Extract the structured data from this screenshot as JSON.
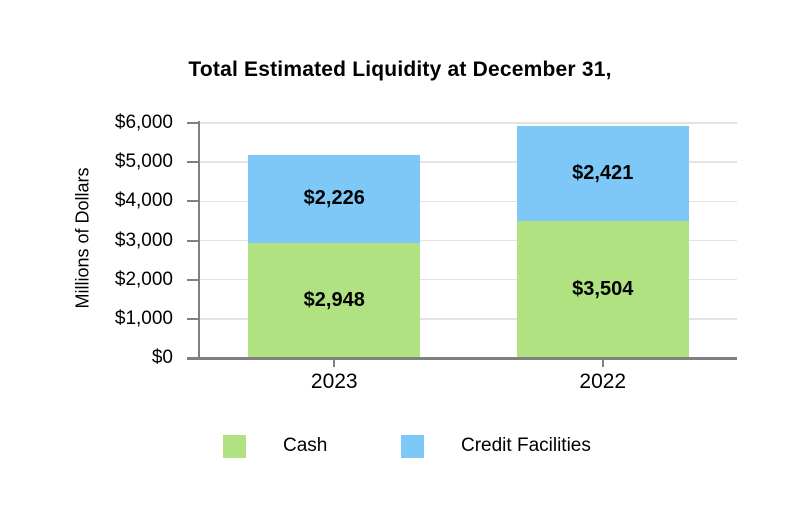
{
  "chart_data": {
    "type": "bar",
    "stacked": true,
    "title": "Total Estimated Liquidity at December 31,",
    "ylabel": "Millions of Dollars",
    "categories": [
      "2023",
      "2022"
    ],
    "series": [
      {
        "name": "Cash",
        "color": "#b1e281",
        "values": [
          2948,
          3504
        ],
        "labels": [
          "$2,948",
          "$3,504"
        ]
      },
      {
        "name": "Credit Facilities",
        "color": "#7ec8f8",
        "values": [
          2226,
          2421
        ],
        "labels": [
          "$2,226",
          "$2,421"
        ]
      }
    ],
    "ylim": [
      0,
      6000
    ],
    "ytick_interval": 1000,
    "ytick_labels": [
      "$0",
      "$1,000",
      "$2,000",
      "$3,000",
      "$4,000",
      "$5,000",
      "$6,000"
    ],
    "grid": true,
    "legend_position": "bottom"
  },
  "colors": {
    "axis": "#808080",
    "gridline": "#e3e3e3",
    "text": "#000000",
    "background": "#ffffff"
  }
}
